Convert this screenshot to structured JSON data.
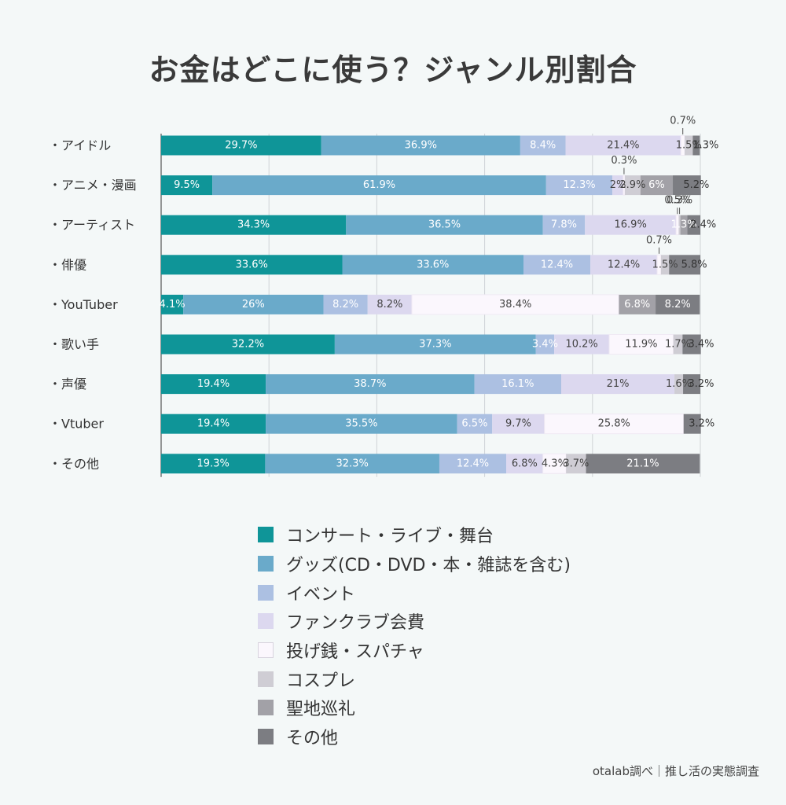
{
  "title": "お金はどこに使う？ジャンル別割合",
  "source": "otalab調べ｜推し活の実態調査",
  "chart_data": {
    "type": "bar",
    "orientation": "horizontal",
    "stacked": true,
    "percent_stacked": true,
    "title": "お金はどこに使う？ジャンル別割合",
    "xlim": [
      0,
      100
    ],
    "grid": true,
    "legend_position": "bottom",
    "categories": [
      "・アイドル",
      "・アニメ・漫画",
      "・アーティスト",
      "・俳優",
      "・YouTuber",
      "・歌い手",
      "・声優",
      "・Vtuber",
      "・その他"
    ],
    "series": [
      {
        "name": "コンサート・ライブ・舞台",
        "color": "#0f9598",
        "values": [
          29.7,
          9.5,
          34.3,
          33.6,
          4.1,
          32.2,
          19.4,
          19.4,
          19.3
        ],
        "labels": [
          "29.7%",
          "9.5%",
          "34.3%",
          "33.6%",
          "4.1%",
          "32.2%",
          "19.4%",
          "19.4%",
          "19.3%"
        ]
      },
      {
        "name": "グッズ(CD・DVD・本・雑誌を含む)",
        "color": "#6aaaca",
        "values": [
          36.9,
          61.9,
          36.5,
          33.6,
          26,
          37.3,
          38.7,
          35.5,
          32.3
        ],
        "labels": [
          "36.9%",
          "61.9%",
          "36.5%",
          "33.6%",
          "26%",
          "37.3%",
          "38.7%",
          "35.5%",
          "32.3%"
        ]
      },
      {
        "name": "イベント",
        "color": "#acc0e2",
        "values": [
          8.4,
          12.3,
          7.8,
          12.4,
          8.2,
          3.4,
          16.1,
          6.5,
          12.4
        ],
        "labels": [
          "8.4%",
          "12.3%",
          "7.8%",
          "12.4%",
          "8.2%",
          "3.4%",
          "16.1%",
          "6.5%",
          "12.4%"
        ]
      },
      {
        "name": "ファンクラブ会費",
        "color": "#dcd8ef",
        "values": [
          21.4,
          2,
          16.9,
          12.4,
          8.2,
          10.2,
          21,
          9.7,
          6.8
        ],
        "labels": [
          "21.4%",
          "2%",
          "16.9%",
          "12.4%",
          "8.2%",
          "10.2%",
          "21%",
          "9.7%",
          "6.8%"
        ]
      },
      {
        "name": "投げ銭・スパチャ",
        "color": "#fbf7fd",
        "values": [
          0.7,
          0.3,
          0.5,
          0.7,
          38.4,
          11.9,
          0,
          25.8,
          4.3
        ],
        "labels": [
          "0.7%",
          "0.3%",
          "0.5%",
          "0.7%",
          "38.4%",
          "11.9%",
          "",
          "25.8%",
          "4.3%"
        ]
      },
      {
        "name": "コスプレ",
        "color": "#cfcdd4",
        "values": [
          1.5,
          2.9,
          0.3,
          1.5,
          0,
          1.7,
          1.6,
          0,
          3.7
        ],
        "labels": [
          "1.5%",
          "2.9%",
          "0.3%",
          "1.5%",
          "",
          "1.7%",
          "1.6%",
          "",
          "3.7%"
        ]
      },
      {
        "name": "聖地巡礼",
        "color": "#a2a1a7",
        "values": [
          0,
          6,
          1.3,
          0,
          6.8,
          0,
          0,
          0,
          0
        ],
        "labels": [
          "",
          "6%",
          "1.3%",
          "",
          "6.8%",
          "",
          "",
          "",
          ""
        ]
      },
      {
        "name": "その他",
        "color": "#7c7d82",
        "values": [
          1.3,
          5.2,
          2.4,
          5.8,
          8.2,
          3.4,
          3.2,
          3.2,
          21.1
        ],
        "labels": [
          "1.3%",
          "5.2%",
          "2.4%",
          "5.8%",
          "8.2%",
          "3.4%",
          "3.2%",
          "3.2%",
          "21.1%"
        ]
      }
    ]
  }
}
